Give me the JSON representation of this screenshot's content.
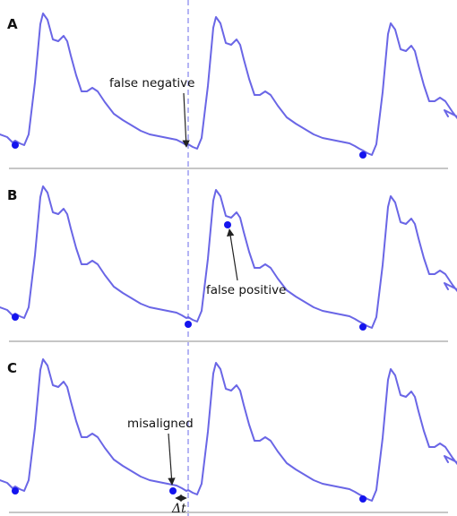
{
  "colors": {
    "waveform": "#6a66e6",
    "marker": "#1414ee",
    "guide_line": "#9c9cf0",
    "baseline": "#c6c6c6",
    "arrow": "#222222"
  },
  "panels": [
    {
      "letter": "A",
      "annotation": "false negative"
    },
    {
      "letter": "B",
      "annotation": "false positive"
    },
    {
      "letter": "C",
      "annotation": "misaligned",
      "delta_label": "Δt"
    }
  ]
}
